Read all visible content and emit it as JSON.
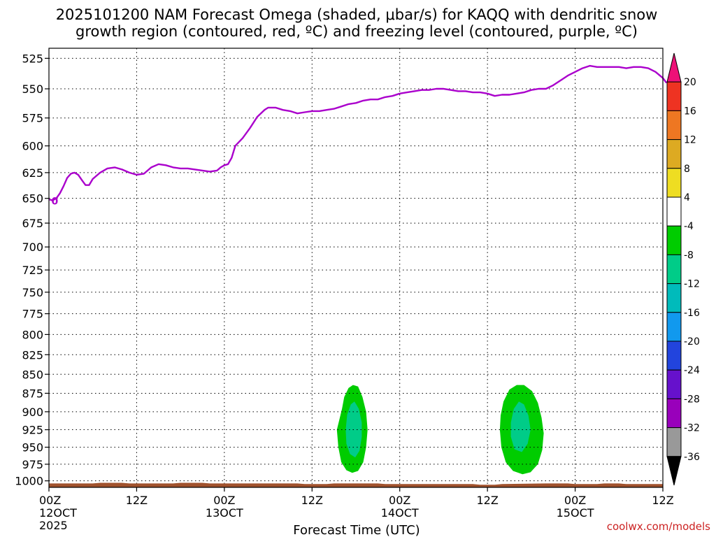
{
  "title_line1": "2025101200 NAM Forecast Omega (shaded, μbar/s) for KAQQ with dendritic snow",
  "title_line2": "growth region (contoured, red, ºC) and freezing level (contoured, purple, ºC)",
  "credit": "coolwx.com/models",
  "chart_data": {
    "type": "area",
    "xlabel": "Forecast Time (UTC)",
    "ylabel": "",
    "x_range_hours": [
      0,
      72
    ],
    "y_range_hPa": [
      1010,
      517
    ],
    "y_ticks": [
      525,
      550,
      575,
      600,
      625,
      650,
      675,
      700,
      725,
      750,
      775,
      800,
      825,
      850,
      875,
      900,
      925,
      950,
      975,
      1000
    ],
    "x_ticks": [
      {
        "hour": 0,
        "lines": [
          "00Z",
          "12OCT",
          "2025"
        ]
      },
      {
        "hour": 12,
        "lines": [
          "12Z"
        ]
      },
      {
        "hour": 24,
        "lines": [
          "00Z",
          "13OCT"
        ]
      },
      {
        "hour": 36,
        "lines": [
          "12Z"
        ]
      },
      {
        "hour": 48,
        "lines": [
          "00Z",
          "14OCT"
        ]
      },
      {
        "hour": 60,
        "lines": [
          "12Z"
        ]
      },
      {
        "hour": 72,
        "lines": [
          "00Z",
          "15OCT"
        ]
      },
      {
        "hour": 84,
        "lines": [
          "12Z"
        ]
      }
    ],
    "x_axis_max_hour": 84,
    "grid": true,
    "freezing_level": {
      "color": "#aa00cc",
      "label": "0",
      "points": [
        [
          0.0,
          651
        ],
        [
          0.5,
          652
        ],
        [
          1.0,
          650
        ],
        [
          1.5,
          645
        ],
        [
          2.0,
          638
        ],
        [
          2.5,
          630
        ],
        [
          3.0,
          626
        ],
        [
          3.5,
          625
        ],
        [
          4.0,
          627
        ],
        [
          4.5,
          632
        ],
        [
          5.0,
          637
        ],
        [
          5.5,
          637
        ],
        [
          6.0,
          631
        ],
        [
          7.0,
          625
        ],
        [
          8.0,
          621
        ],
        [
          9.0,
          620
        ],
        [
          10.0,
          622
        ],
        [
          11.0,
          625
        ],
        [
          12.0,
          627
        ],
        [
          13.0,
          626
        ],
        [
          14.0,
          620
        ],
        [
          15.0,
          617
        ],
        [
          16.0,
          618
        ],
        [
          17.0,
          620
        ],
        [
          18.0,
          621
        ],
        [
          19.0,
          621
        ],
        [
          20.0,
          622
        ],
        [
          21.0,
          623
        ],
        [
          22.0,
          624
        ],
        [
          23.0,
          623
        ],
        [
          23.5,
          620
        ],
        [
          24.0,
          618
        ],
        [
          24.5,
          617
        ],
        [
          25.0,
          611
        ],
        [
          25.5,
          600
        ],
        [
          26.5,
          593
        ],
        [
          27.5,
          584
        ],
        [
          28.5,
          574
        ],
        [
          29.5,
          568
        ],
        [
          30.0,
          566
        ],
        [
          31.0,
          566
        ],
        [
          32.0,
          568
        ],
        [
          33.0,
          569
        ],
        [
          34.0,
          571
        ],
        [
          35.0,
          570
        ],
        [
          36.0,
          569
        ],
        [
          37.0,
          569
        ],
        [
          38.0,
          568
        ],
        [
          39.0,
          567
        ],
        [
          40.0,
          565
        ],
        [
          41.0,
          563
        ],
        [
          42.0,
          562
        ],
        [
          43.0,
          560
        ],
        [
          44.0,
          559
        ],
        [
          45.0,
          559
        ],
        [
          46.0,
          557
        ],
        [
          47.0,
          556
        ],
        [
          48.0,
          554
        ],
        [
          49.0,
          553
        ],
        [
          50.0,
          552
        ],
        [
          51.0,
          551
        ],
        [
          52.0,
          551
        ],
        [
          53.0,
          550
        ],
        [
          54.0,
          550
        ],
        [
          55.0,
          551
        ],
        [
          56.0,
          552
        ],
        [
          57.0,
          552
        ],
        [
          58.0,
          553
        ],
        [
          59.0,
          553
        ],
        [
          60.0,
          554
        ],
        [
          61.0,
          556
        ],
        [
          62.0,
          555
        ],
        [
          63.0,
          555
        ],
        [
          64.0,
          554
        ],
        [
          65.0,
          553
        ],
        [
          66.0,
          551
        ],
        [
          67.0,
          550
        ],
        [
          68.0,
          550
        ],
        [
          69.0,
          547
        ],
        [
          70.0,
          543
        ],
        [
          71.0,
          539
        ],
        [
          72.0,
          536
        ],
        [
          73.0,
          533
        ],
        [
          74.0,
          531
        ],
        [
          75.0,
          532
        ],
        [
          76.0,
          532
        ],
        [
          77.0,
          532
        ],
        [
          78.0,
          532
        ],
        [
          79.0,
          533
        ],
        [
          80.0,
          532
        ],
        [
          81.0,
          532
        ],
        [
          82.0,
          533
        ],
        [
          83.0,
          536
        ],
        [
          84.0,
          541
        ],
        [
          84.5,
          545
        ]
      ]
    },
    "omega_regions": [
      {
        "color": "#00cc00",
        "label": "-8 to -4",
        "points": [
          [
            40.1,
            896
          ],
          [
            40.4,
            880
          ],
          [
            41.0,
            868
          ],
          [
            41.6,
            864
          ],
          [
            42.3,
            866
          ],
          [
            42.9,
            880
          ],
          [
            43.4,
            900
          ],
          [
            43.6,
            925
          ],
          [
            43.4,
            950
          ],
          [
            43.0,
            972
          ],
          [
            42.3,
            985
          ],
          [
            41.5,
            988
          ],
          [
            40.7,
            984
          ],
          [
            40.0,
            972
          ],
          [
            39.6,
            950
          ],
          [
            39.4,
            925
          ]
        ]
      },
      {
        "color": "#00cc88",
        "label": "-12 to -8",
        "points": [
          [
            40.8,
            904
          ],
          [
            41.3,
            890
          ],
          [
            41.8,
            886
          ],
          [
            42.4,
            896
          ],
          [
            42.8,
            915
          ],
          [
            42.8,
            935
          ],
          [
            42.5,
            955
          ],
          [
            41.9,
            965
          ],
          [
            41.2,
            960
          ],
          [
            40.7,
            945
          ],
          [
            40.6,
            925
          ]
        ]
      },
      {
        "color": "#00cc00",
        "label": "-8 to -4",
        "points": [
          [
            62.2,
            886
          ],
          [
            63.0,
            870
          ],
          [
            64.0,
            864
          ],
          [
            65.0,
            864
          ],
          [
            66.1,
            872
          ],
          [
            66.9,
            888
          ],
          [
            67.4,
            908
          ],
          [
            67.7,
            930
          ],
          [
            67.5,
            954
          ],
          [
            66.9,
            975
          ],
          [
            65.9,
            987
          ],
          [
            64.8,
            990
          ],
          [
            63.5,
            985
          ],
          [
            62.5,
            972
          ],
          [
            61.9,
            950
          ],
          [
            61.7,
            925
          ],
          [
            61.8,
            905
          ]
        ]
      },
      {
        "color": "#00cc88",
        "label": "-12 to -8",
        "points": [
          [
            63.6,
            896
          ],
          [
            64.3,
            886
          ],
          [
            65.0,
            890
          ],
          [
            65.6,
            905
          ],
          [
            65.9,
            925
          ],
          [
            65.5,
            945
          ],
          [
            64.7,
            957
          ],
          [
            63.7,
            953
          ],
          [
            63.2,
            935
          ],
          [
            63.2,
            915
          ]
        ]
      }
    ],
    "surface": {
      "color": "#a0522d",
      "points": [
        [
          0,
          1004
        ],
        [
          6,
          1004
        ],
        [
          7,
          1003
        ],
        [
          10,
          1003
        ],
        [
          11,
          1004
        ],
        [
          17,
          1004
        ],
        [
          18,
          1003
        ],
        [
          21,
          1003
        ],
        [
          22,
          1004
        ],
        [
          34,
          1004
        ],
        [
          35,
          1005
        ],
        [
          38,
          1005
        ],
        [
          39,
          1004
        ],
        [
          45,
          1004
        ],
        [
          46,
          1005
        ],
        [
          58,
          1005
        ],
        [
          59,
          1006
        ],
        [
          61,
          1006
        ],
        [
          62,
          1005
        ],
        [
          68,
          1004
        ],
        [
          71,
          1004
        ],
        [
          72,
          1005
        ],
        [
          75,
          1005
        ],
        [
          76,
          1004
        ],
        [
          78,
          1004
        ],
        [
          79,
          1005
        ],
        [
          84,
          1005
        ]
      ]
    },
    "colorbar": {
      "ticks": [
        "20",
        "16",
        "12",
        "8",
        "4",
        "-4",
        "-8",
        "-12",
        "-16",
        "-20",
        "-24",
        "-28",
        "-32",
        "-36"
      ],
      "colors": [
        "#ee1177",
        "#ee3322",
        "#ee7722",
        "#ddaa22",
        "#eedd22",
        "#ffffff",
        "#00cc00",
        "#00cc88",
        "#00bbbb",
        "#1199ee",
        "#2244dd",
        "#6611cc",
        "#9900bb",
        "#999999",
        "#000000"
      ]
    }
  }
}
